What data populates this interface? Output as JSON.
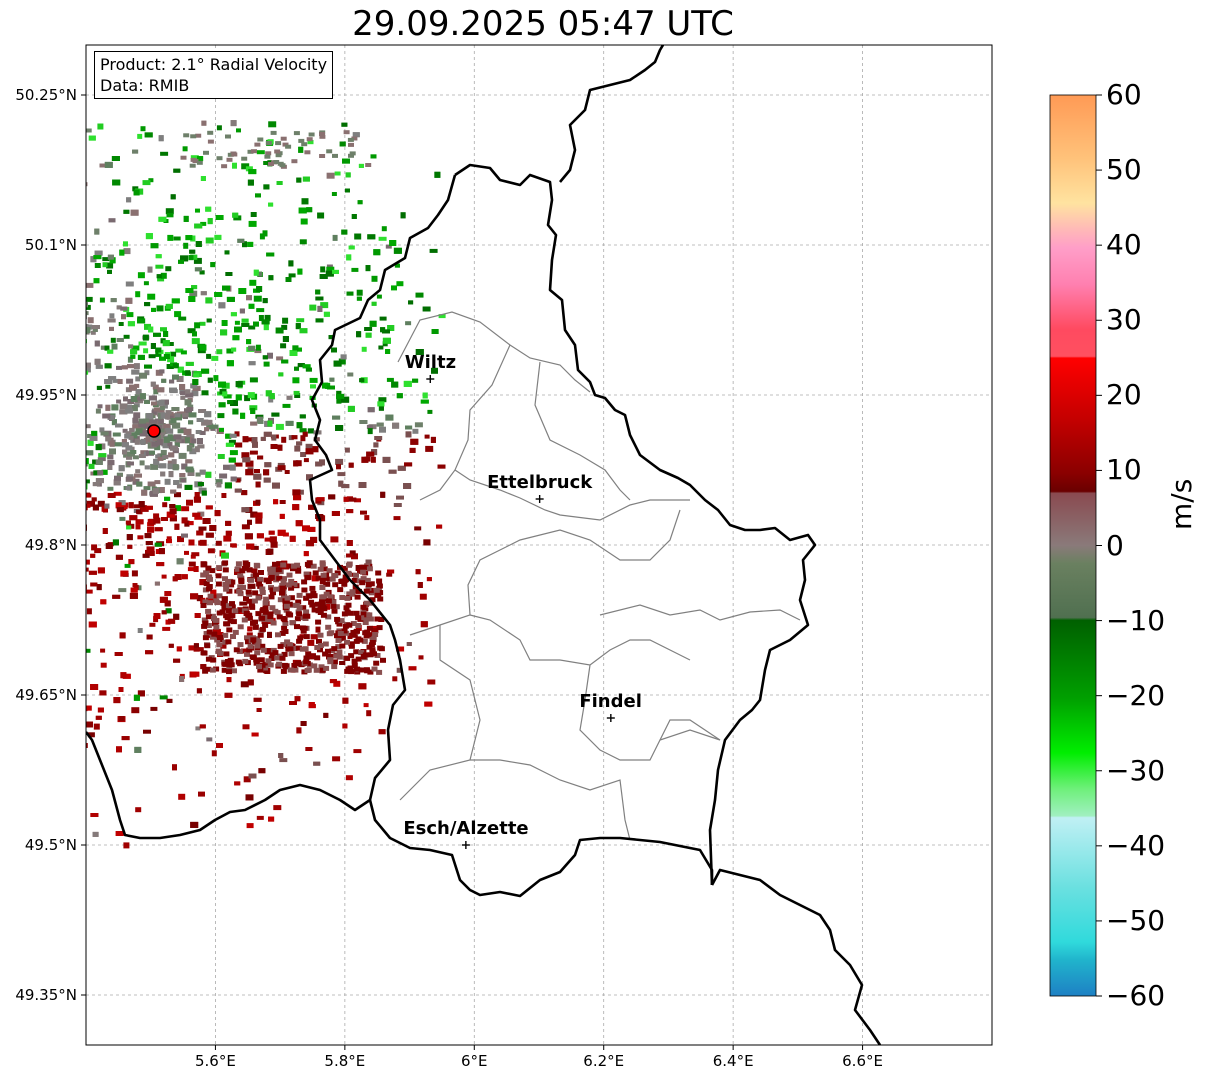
{
  "title": "29.09.2025 05:47 UTC",
  "info_box": {
    "product": "Product: 2.1° Radial Velocity",
    "data_source": "Data: RMIB"
  },
  "axes": {
    "lat_labels": [
      "50.25°N",
      "50.1°N",
      "49.95°N",
      "49.8°N",
      "49.65°N",
      "49.5°N",
      "49.35°N"
    ],
    "lon_labels": [
      "5.6°E",
      "5.8°E",
      "6°E",
      "6.2°E",
      "6.4°E",
      "6.6°E"
    ],
    "lat_values": [
      50.25,
      50.1,
      49.95,
      49.8,
      49.65,
      49.5,
      49.35
    ],
    "lon_values": [
      5.6,
      5.8,
      6.0,
      6.2,
      6.4,
      6.6
    ],
    "lat_range": [
      49.3,
      50.3
    ],
    "lon_range": [
      5.4,
      6.8
    ]
  },
  "cities": [
    {
      "name": "Wiltz",
      "lat": 49.966,
      "lon": 5.932
    },
    {
      "name": "Ettelbruck",
      "lat": 49.846,
      "lon": 6.101
    },
    {
      "name": "Findel",
      "lat": 49.627,
      "lon": 6.211
    },
    {
      "name": "Esch/Alzette",
      "lat": 49.5,
      "lon": 5.987
    }
  ],
  "radar_site": {
    "lat": 49.914,
    "lon": 5.505
  },
  "colorbar": {
    "unit": "m/s",
    "min": -60,
    "max": 60,
    "tick_labels": [
      "60",
      "50",
      "40",
      "30",
      "20",
      "10",
      "0",
      "−10",
      "−20",
      "−30",
      "−40",
      "−50",
      "−60"
    ],
    "tick_values": [
      60,
      50,
      40,
      30,
      20,
      10,
      0,
      -10,
      -20,
      -30,
      -40,
      -50,
      -60
    ]
  },
  "colors": {
    "outflow_dark": "#8b0000",
    "outflow_red": "#c00000",
    "inflow_green": "#009900",
    "inflow_light": "#2ee02e",
    "near_zero": "#7f7f7f",
    "near_zero_green": "#5f7f5f",
    "border": "#000000",
    "canton": "#808080"
  }
}
